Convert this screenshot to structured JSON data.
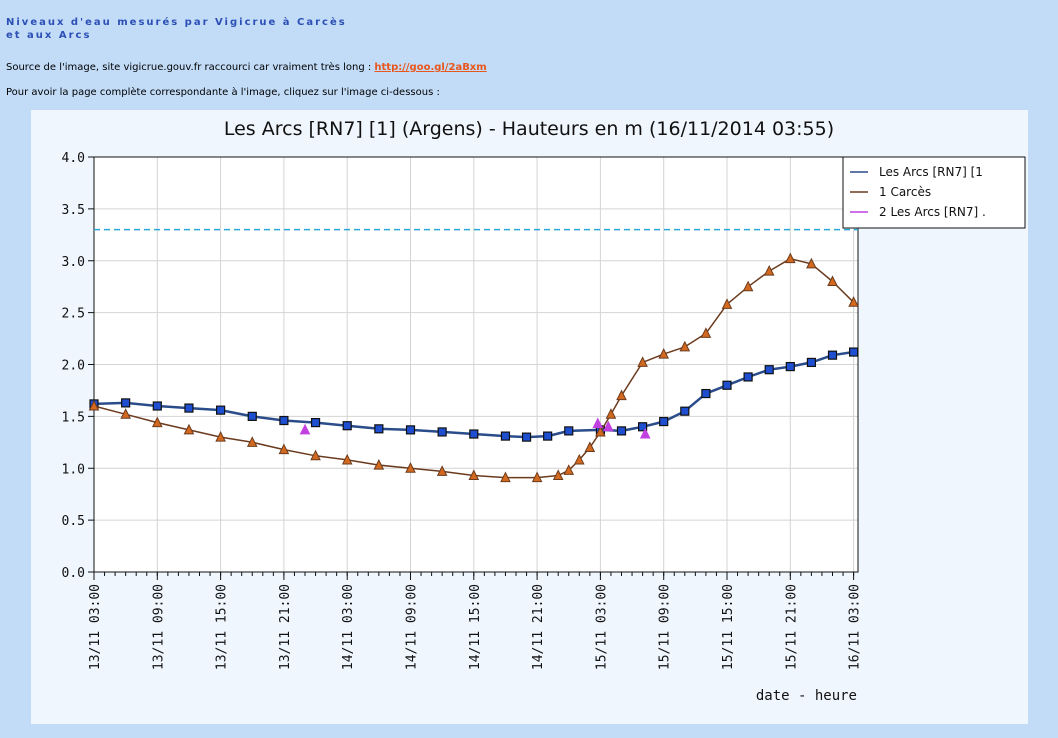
{
  "page": {
    "heading": "Niveaux d'eau mesurés par Vigicrue à Carcès et aux Arcs",
    "source_text": "Source de l'image, site vigicrue.gouv.fr raccourci car vraiment très long : ",
    "source_link": "http://goo.gl/2aBxm",
    "hint": "Pour avoir la page complète correspondante à l'image, cliquez sur l'image ci-dessous :"
  },
  "colors": {
    "page_bg": "#c2dcf8",
    "chart_bg": "#f0f6fe",
    "heading": "#2c4fb5",
    "link": "#e8571c",
    "threshold": "#2aa6d6",
    "series_arcs": "#1e4fd0",
    "series_carces": "#6b3b1e",
    "series_arcs2": "#c040e0"
  },
  "chart_data": {
    "type": "line",
    "title": "Les Arcs [RN7] [1] (Argens) - Hauteurs en m (16/11/2014 03:55)",
    "xlabel": "date - heure",
    "ylabel": "",
    "ylim": [
      0,
      4
    ],
    "yticks": [
      "0.0",
      "0.5",
      "1.0",
      "1.5",
      "2.0",
      "2.5",
      "3.0",
      "3.5",
      "4.0"
    ],
    "xlim": [
      "13/11 03:00",
      "16/11 03:25"
    ],
    "xticks": [
      "13/11 03:00",
      "13/11 09:00",
      "13/11 15:00",
      "13/11 21:00",
      "14/11 03:00",
      "14/11 09:00",
      "14/11 15:00",
      "14/11 21:00",
      "15/11 03:00",
      "15/11 09:00",
      "15/11 15:00",
      "15/11 21:00",
      "16/11 03:00"
    ],
    "grid": true,
    "legend_position": "top-right",
    "threshold": 3.3,
    "series": [
      {
        "name": "Les Arcs [RN7] [1",
        "marker": "square",
        "x": [
          "13/11 03:00",
          "13/11 06:00",
          "13/11 09:00",
          "13/11 12:00",
          "13/11 15:00",
          "13/11 18:00",
          "13/11 21:00",
          "14/11 00:00",
          "14/11 03:00",
          "14/11 06:00",
          "14/11 09:00",
          "14/11 12:00",
          "14/11 15:00",
          "14/11 18:00",
          "14/11 20:00",
          "14/11 22:00",
          "15/11 00:00",
          "15/11 03:00",
          "15/11 05:00",
          "15/11 07:00",
          "15/11 09:00",
          "15/11 11:00",
          "15/11 13:00",
          "15/11 15:00",
          "15/11 17:00",
          "15/11 19:00",
          "15/11 21:00",
          "15/11 23:00",
          "16/11 01:00",
          "16/11 03:00"
        ],
        "y": [
          1.62,
          1.63,
          1.6,
          1.58,
          1.56,
          1.5,
          1.46,
          1.44,
          1.41,
          1.38,
          1.37,
          1.35,
          1.33,
          1.31,
          1.3,
          1.31,
          1.36,
          1.37,
          1.36,
          1.4,
          1.45,
          1.55,
          1.72,
          1.8,
          1.88,
          1.95,
          1.98,
          2.02,
          2.09,
          2.12
        ]
      },
      {
        "name": "1 Carcès",
        "marker": "triangle",
        "x": [
          "13/11 03:00",
          "13/11 06:00",
          "13/11 09:00",
          "13/11 12:00",
          "13/11 15:00",
          "13/11 18:00",
          "13/11 21:00",
          "14/11 00:00",
          "14/11 03:00",
          "14/11 06:00",
          "14/11 09:00",
          "14/11 12:00",
          "14/11 15:00",
          "14/11 18:00",
          "14/11 21:00",
          "14/11 23:00",
          "15/11 00:00",
          "15/11 01:00",
          "15/11 02:00",
          "15/11 03:00",
          "15/11 04:00",
          "15/11 05:00",
          "15/11 07:00",
          "15/11 09:00",
          "15/11 11:00",
          "15/11 13:00",
          "15/11 15:00",
          "15/11 17:00",
          "15/11 19:00",
          "15/11 21:00",
          "15/11 23:00",
          "16/11 01:00",
          "16/11 03:00"
        ],
        "y": [
          1.6,
          1.52,
          1.44,
          1.37,
          1.3,
          1.25,
          1.18,
          1.12,
          1.08,
          1.03,
          1.0,
          0.97,
          0.93,
          0.91,
          0.91,
          0.93,
          0.98,
          1.08,
          1.2,
          1.35,
          1.52,
          1.7,
          2.02,
          2.1,
          2.17,
          2.3,
          2.58,
          2.75,
          2.9,
          3.02,
          2.97,
          2.8,
          2.6
        ]
      },
      {
        "name": "2 Les Arcs [RN7] .",
        "marker": "triangle",
        "x": [
          "13/11 23:00",
          "15/11 02:45",
          "15/11 03:45",
          "15/11 07:15"
        ],
        "y": [
          1.37,
          1.43,
          1.4,
          1.33
        ]
      }
    ]
  }
}
